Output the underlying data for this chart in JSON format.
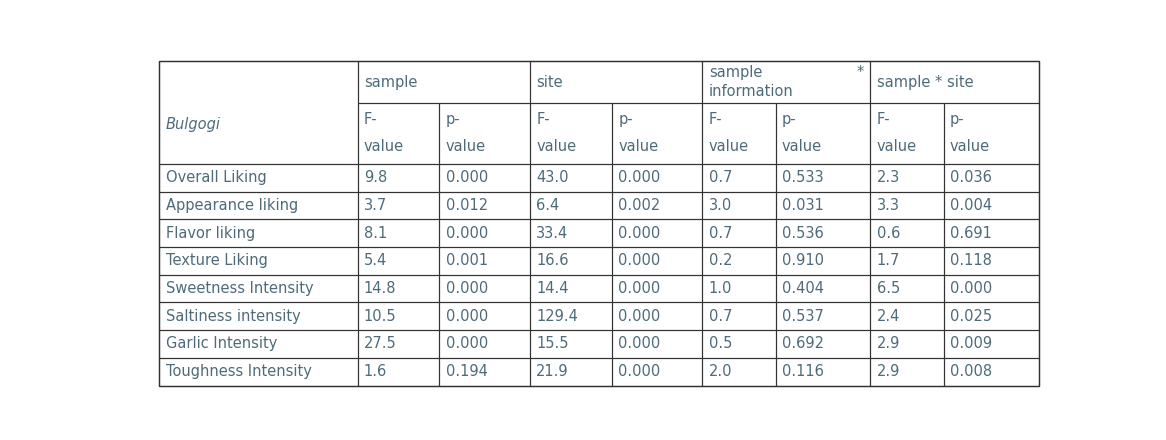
{
  "row_labels": [
    "Overall Liking",
    "Appearance liking",
    "Flavor liking",
    "Texture Liking",
    "Sweetness Intensity",
    "Saltiness intensity",
    "Garlic Intensity",
    "Toughness Intensity"
  ],
  "rows": [
    [
      "9.8",
      "0.000",
      "43.0",
      "0.000",
      "0.7",
      "0.533",
      "2.3",
      "0.036"
    ],
    [
      "3.7",
      "0.012",
      "6.4",
      "0.002",
      "3.0",
      "0.031",
      "3.3",
      "0.004"
    ],
    [
      "8.1",
      "0.000",
      "33.4",
      "0.000",
      "0.7",
      "0.536",
      "0.6",
      "0.691"
    ],
    [
      "5.4",
      "0.001",
      "16.6",
      "0.000",
      "0.2",
      "0.910",
      "1.7",
      "0.118"
    ],
    [
      "14.8",
      "0.000",
      "14.4",
      "0.000",
      "1.0",
      "0.404",
      "6.5",
      "0.000"
    ],
    [
      "10.5",
      "0.000",
      "129.4",
      "0.000",
      "0.7",
      "0.537",
      "2.4",
      "0.025"
    ],
    [
      "27.5",
      "0.000",
      "15.5",
      "0.000",
      "0.5",
      "0.692",
      "2.9",
      "0.009"
    ],
    [
      "1.6",
      "0.194",
      "21.9",
      "0.000",
      "2.0",
      "0.116",
      "2.9",
      "0.008"
    ]
  ],
  "bg_color": "#ffffff",
  "border_color": "#333333",
  "text_color": "#4d6b7a",
  "italic_color": "#5a6e7a",
  "font_size": 10.5,
  "bulgogi_italic": "Bulgogi",
  "group_labels": [
    "sample",
    "site",
    "sample *\ninformation",
    "sample * site"
  ],
  "sub_headers_left": [
    "F-\nvalue",
    "p-\nvalue",
    "F-\nvalue",
    "p-\nvalue",
    "F-\nvalue",
    "p-\nvalue",
    "F-\nvalue",
    "p-\nvalue"
  ],
  "col_widths_rel": [
    2.3,
    0.95,
    1.05,
    0.95,
    1.05,
    0.85,
    1.1,
    0.85,
    1.1
  ],
  "row_heights_rel": [
    1.5,
    2.2,
    1.0,
    1.0,
    1.0,
    1.0,
    1.0,
    1.0,
    1.0,
    1.0
  ]
}
